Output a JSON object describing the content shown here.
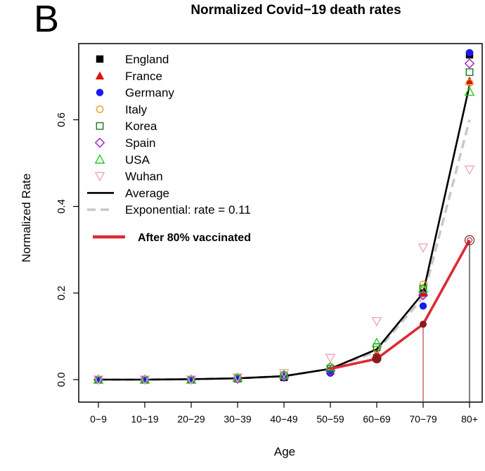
{
  "panel_label": "B",
  "chart_data": {
    "type": "line",
    "title": "Normalized Covid−19 death rates",
    "xlabel": "Age",
    "ylabel": "Normalized Rate",
    "categories": [
      "0−9",
      "10−19",
      "20−29",
      "30−39",
      "40−49",
      "50−59",
      "60−69",
      "70−79",
      "80+"
    ],
    "ylim": [
      0,
      0.75
    ],
    "yticks": [
      0.0,
      0.2,
      0.4,
      0.6
    ],
    "ytick_labels": [
      "0.0",
      "0.2",
      "0.4",
      "0.6"
    ],
    "grid": false,
    "legend_position": "top-left",
    "series": [
      {
        "name": "England",
        "marker": "filled-square",
        "color": "#000000",
        "values": [
          0.0,
          0.0,
          0.0,
          0.002,
          0.005,
          0.02,
          0.05,
          0.2,
          0.75
        ]
      },
      {
        "name": "France",
        "marker": "filled-triangle",
        "color": "#dd1111",
        "values": [
          0.0,
          0.0,
          0.0,
          0.003,
          0.008,
          0.022,
          0.06,
          0.2,
          0.69
        ]
      },
      {
        "name": "Germany",
        "marker": "filled-circle",
        "color": "#1a1aee",
        "values": [
          0.0,
          0.0,
          0.0,
          0.002,
          0.005,
          0.015,
          0.05,
          0.17,
          0.755
        ]
      },
      {
        "name": "Italy",
        "marker": "open-circle",
        "color": "#e8a020",
        "values": [
          0.0,
          0.0,
          0.0,
          0.003,
          0.008,
          0.03,
          0.07,
          0.22,
          0.685
        ]
      },
      {
        "name": "Korea",
        "marker": "open-square",
        "color": "#1a7a1a",
        "values": [
          0.0,
          0.0,
          0.0,
          0.003,
          0.01,
          0.025,
          0.075,
          0.21,
          0.71
        ]
      },
      {
        "name": "Spain",
        "marker": "open-diamond",
        "color": "#9a20c8",
        "values": [
          0.0,
          0.0,
          0.0,
          0.002,
          0.006,
          0.02,
          0.05,
          0.195,
          0.73
        ]
      },
      {
        "name": "USA",
        "marker": "open-triangle",
        "color": "#22cc22",
        "values": [
          0.0,
          0.0,
          0.0,
          0.005,
          0.012,
          0.03,
          0.085,
          0.21,
          0.665
        ]
      },
      {
        "name": "Wuhan",
        "marker": "open-triangle-down",
        "color": "#f0a8b8",
        "values": [
          0.0,
          0.0,
          0.0,
          0.005,
          0.015,
          0.05,
          0.135,
          0.305,
          0.485
        ]
      },
      {
        "name": "Average",
        "style": "solid-line",
        "color": "#000000",
        "values": [
          0.0,
          0.0,
          0.001,
          0.003,
          0.008,
          0.025,
          0.07,
          0.2,
          0.68
        ]
      },
      {
        "name": "Exponential: rate = 0.11",
        "style": "dashed-line",
        "color": "#c8c8c8",
        "values": [
          0.0,
          0.0,
          0.001,
          0.003,
          0.008,
          0.025,
          0.065,
          0.19,
          0.6
        ]
      },
      {
        "name": "After 80% vaccinated",
        "style": "thick-line",
        "color": "#dd2a35",
        "values": [
          null,
          null,
          null,
          null,
          null,
          0.025,
          0.048,
          0.128,
          0.322
        ]
      }
    ],
    "annotation": "After 80% vaccinated"
  },
  "colors": {
    "vaccinated": "#dd2a35",
    "dark_red_marker": "#8b1a1a"
  }
}
